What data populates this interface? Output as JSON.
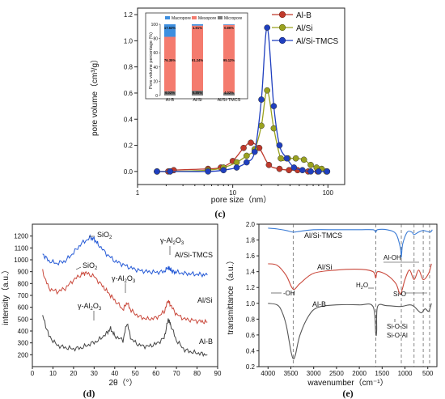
{
  "chart_data": [
    {
      "id": "c",
      "type": "line",
      "panel_label": "(c)",
      "xlabel": "pore size（nm）",
      "ylabel": "pore volume（cm³/g）",
      "xscale": "log",
      "xlim": [
        1,
        150
      ],
      "ylim": [
        -0.1,
        1.25
      ],
      "x_ticks": [
        1,
        10,
        100
      ],
      "y_ticks": [
        0.0,
        0.2,
        0.4,
        0.6,
        0.8,
        1.0,
        1.2
      ],
      "legend_position": "top-right",
      "series": [
        {
          "name": "Al-B",
          "color": "#c0392b",
          "marker": "circle",
          "x": [
            1.6,
            2.1,
            2.4,
            5.5,
            7.5,
            10,
            13,
            15.5,
            19,
            24,
            31,
            39,
            48,
            62,
            78,
            98
          ],
          "y": [
            0.0,
            0.0,
            0.01,
            0.02,
            0.03,
            0.08,
            0.18,
            0.22,
            0.18,
            0.05,
            0.02,
            0.01,
            0.01,
            0.0,
            0.0,
            0.0
          ]
        },
        {
          "name": "Al/Si",
          "color": "#9aa21f",
          "marker": "circle",
          "x": [
            1.6,
            2.2,
            5.5,
            8,
            11,
            14,
            17,
            20,
            23,
            27,
            32,
            38,
            46,
            56,
            66,
            76,
            86,
            96
          ],
          "y": [
            0.0,
            0.0,
            0.01,
            0.03,
            0.07,
            0.12,
            0.17,
            0.35,
            0.62,
            0.33,
            0.1,
            0.1,
            0.1,
            0.09,
            0.05,
            0.03,
            0.02,
            0.0
          ]
        },
        {
          "name": "Al/Si-TMCS",
          "color": "#1f3fbf",
          "marker": "circle",
          "x": [
            1.6,
            2.2,
            5.5,
            8,
            11,
            14,
            17,
            20,
            23,
            27,
            31,
            37,
            44,
            54,
            66,
            80,
            98
          ],
          "y": [
            0.0,
            0.0,
            0.0,
            0.01,
            0.03,
            0.07,
            0.15,
            0.55,
            1.1,
            0.5,
            0.2,
            0.1,
            0.03,
            0.01,
            0.0,
            0.0,
            0.0
          ]
        }
      ],
      "inset": {
        "type": "stacked-bar",
        "ylabel": "Pore volume percentage (%)",
        "y_ticks": [
          0,
          20,
          40,
          60,
          80,
          100
        ],
        "categories": [
          "Al-B",
          "Al/Si",
          "Al/Si-TMCS"
        ],
        "legend": [
          "Macropore",
          "Mesopore",
          "Micropore"
        ],
        "colors": {
          "Macropore": "#3d8fe0",
          "Mesopore": "#f47b6e",
          "Micropore": "#7a7a7a"
        },
        "series": [
          {
            "name": "Micropore",
            "values": [
              6.02,
              6.85,
              4.02
            ],
            "labels": [
              "6.02%",
              "6.85%",
              "4.02%"
            ]
          },
          {
            "name": "Mesopore",
            "values": [
              76.35,
              91.24,
              95.12
            ],
            "labels": [
              "76.35%",
              "91.24%",
              "95.12%"
            ]
          },
          {
            "name": "Macropore",
            "values": [
              17.63,
              1.91,
              0.86
            ],
            "labels": [
              "17.63%",
              "1.91%",
              "0.86%"
            ]
          }
        ]
      }
    },
    {
      "id": "d",
      "type": "line",
      "panel_label": "(d)",
      "xlabel": "2θ（°）",
      "ylabel": "intensity（a.u.）",
      "xlim": [
        0,
        90
      ],
      "ylim": [
        100,
        1300
      ],
      "x_ticks": [
        0,
        10,
        20,
        30,
        40,
        50,
        60,
        70,
        80,
        90
      ],
      "y_ticks": [
        200,
        300,
        400,
        500,
        600,
        700,
        800,
        900,
        1000,
        1100,
        1200
      ],
      "series": [
        {
          "name": "Al/Si-TMCS",
          "color": "#2459d6",
          "x": [
            5,
            8,
            12,
            16,
            20,
            24,
            28,
            30,
            32,
            36,
            40,
            44,
            48,
            52,
            56,
            60,
            64,
            66,
            67,
            68,
            70,
            74,
            78,
            82,
            85
          ],
          "y": [
            1050,
            990,
            970,
            990,
            1060,
            1140,
            1185,
            1175,
            1130,
            1050,
            990,
            960,
            930,
            910,
            900,
            895,
            900,
            935,
            920,
            900,
            895,
            885,
            880,
            875,
            870
          ]
        },
        {
          "name": "Al/Si",
          "color": "#c9473a",
          "x": [
            5,
            8,
            12,
            16,
            20,
            24,
            26,
            30,
            34,
            37,
            40,
            44,
            46,
            48,
            52,
            56,
            60,
            64,
            66,
            67,
            70,
            74,
            78,
            82,
            85
          ],
          "y": [
            900,
            760,
            730,
            760,
            830,
            880,
            890,
            860,
            780,
            720,
            660,
            580,
            640,
            570,
            520,
            500,
            510,
            560,
            660,
            620,
            540,
            500,
            490,
            480,
            475
          ]
        },
        {
          "name": "Al-B",
          "color": "#444444",
          "x": [
            5,
            8,
            12,
            16,
            20,
            24,
            28,
            32,
            36,
            38,
            40,
            44,
            46,
            48,
            52,
            56,
            60,
            64,
            66,
            67,
            70,
            74,
            78,
            82,
            85
          ],
          "y": [
            530,
            360,
            280,
            260,
            250,
            260,
            290,
            320,
            380,
            420,
            360,
            320,
            470,
            330,
            280,
            270,
            290,
            340,
            500,
            460,
            320,
            240,
            220,
            210,
            200
          ]
        }
      ],
      "annotations": [
        {
          "text": "SiO2",
          "target": "Al/Si-TMCS",
          "x": 28,
          "y": 1185
        },
        {
          "text": "γ-Al2O3",
          "target": "Al/Si-TMCS",
          "x": 66,
          "y": 935
        },
        {
          "text": "Al/Si-TMCS",
          "target": "Al/Si-TMCS"
        },
        {
          "text": "SiO2",
          "target": "Al/Si",
          "x": 25,
          "y": 890
        },
        {
          "text": "γ-Al2O3",
          "target": "Al/Si",
          "x": 46,
          "y": 640
        },
        {
          "text": "Al/Si",
          "target": "Al/Si"
        },
        {
          "text": "γ-Al2O3",
          "target": "Al-B",
          "x": 38,
          "y": 420
        },
        {
          "text": "Al-B",
          "target": "Al-B"
        }
      ]
    },
    {
      "id": "e",
      "type": "line",
      "panel_label": "(e)",
      "xlabel": "wavenumber（cm⁻¹）",
      "ylabel": "transmittance（a.u.）",
      "xlim": [
        4200,
        300
      ],
      "x_reversed": true,
      "ylim": [
        0.2,
        2.0
      ],
      "x_ticks": [
        4000,
        3500,
        3000,
        2500,
        2000,
        1500,
        1000,
        500
      ],
      "y_ticks": [
        0.2,
        0.4,
        0.6,
        0.8,
        1.0,
        1.2,
        1.4,
        1.6,
        1.8,
        2.0
      ],
      "series": [
        {
          "name": "Al/Si-TMCS",
          "color": "#3a7bd5",
          "x": [
            4000,
            3800,
            3600,
            3450,
            3300,
            3000,
            2500,
            2000,
            1700,
            1640,
            1600,
            1400,
            1200,
            1100,
            1080,
            1050,
            950,
            850,
            800,
            700,
            600,
            450,
            400
          ],
          "y": [
            1.95,
            1.94,
            1.92,
            1.9,
            1.91,
            1.93,
            1.93,
            1.93,
            1.93,
            1.9,
            1.93,
            1.93,
            1.88,
            1.7,
            1.58,
            1.75,
            1.9,
            1.9,
            1.87,
            1.9,
            1.92,
            1.9,
            1.93
          ]
        },
        {
          "name": "Al/Si",
          "color": "#c9473a",
          "x": [
            4000,
            3800,
            3600,
            3450,
            3300,
            3000,
            2500,
            2000,
            1700,
            1640,
            1600,
            1400,
            1200,
            1100,
            1000,
            900,
            800,
            700,
            600,
            480,
            420
          ],
          "y": [
            1.5,
            1.48,
            1.35,
            1.18,
            1.25,
            1.38,
            1.42,
            1.43,
            1.4,
            1.32,
            1.4,
            1.36,
            1.25,
            1.12,
            1.3,
            1.42,
            1.3,
            1.42,
            1.3,
            1.38,
            1.5
          ]
        },
        {
          "name": "Al-B",
          "color": "#555555",
          "x": [
            4000,
            3800,
            3700,
            3600,
            3500,
            3450,
            3400,
            3300,
            3100,
            2900,
            2500,
            2000,
            1700,
            1640,
            1620,
            1600,
            1400,
            1100,
            900,
            800,
            650,
            560,
            480,
            420
          ],
          "y": [
            1.0,
            0.98,
            0.9,
            0.72,
            0.4,
            0.3,
            0.35,
            0.6,
            0.85,
            0.95,
            0.98,
            0.98,
            0.96,
            0.62,
            0.65,
            0.96,
            0.97,
            0.96,
            0.98,
            0.96,
            0.88,
            0.93,
            0.9,
            1.0
          ]
        }
      ],
      "reference_lines_x": [
        3450,
        1640,
        1080,
        800,
        600,
        460
      ],
      "annotations": [
        {
          "text": "Al/Si-TMCS"
        },
        {
          "text": "Al-OH"
        },
        {
          "text": "Al/Si"
        },
        {
          "text": "H2O"
        },
        {
          "text": "-OH"
        },
        {
          "text": "Si-O"
        },
        {
          "text": "Al-B"
        },
        {
          "text": "Si-O-Si"
        },
        {
          "text": "Si-O-Al"
        }
      ]
    }
  ]
}
